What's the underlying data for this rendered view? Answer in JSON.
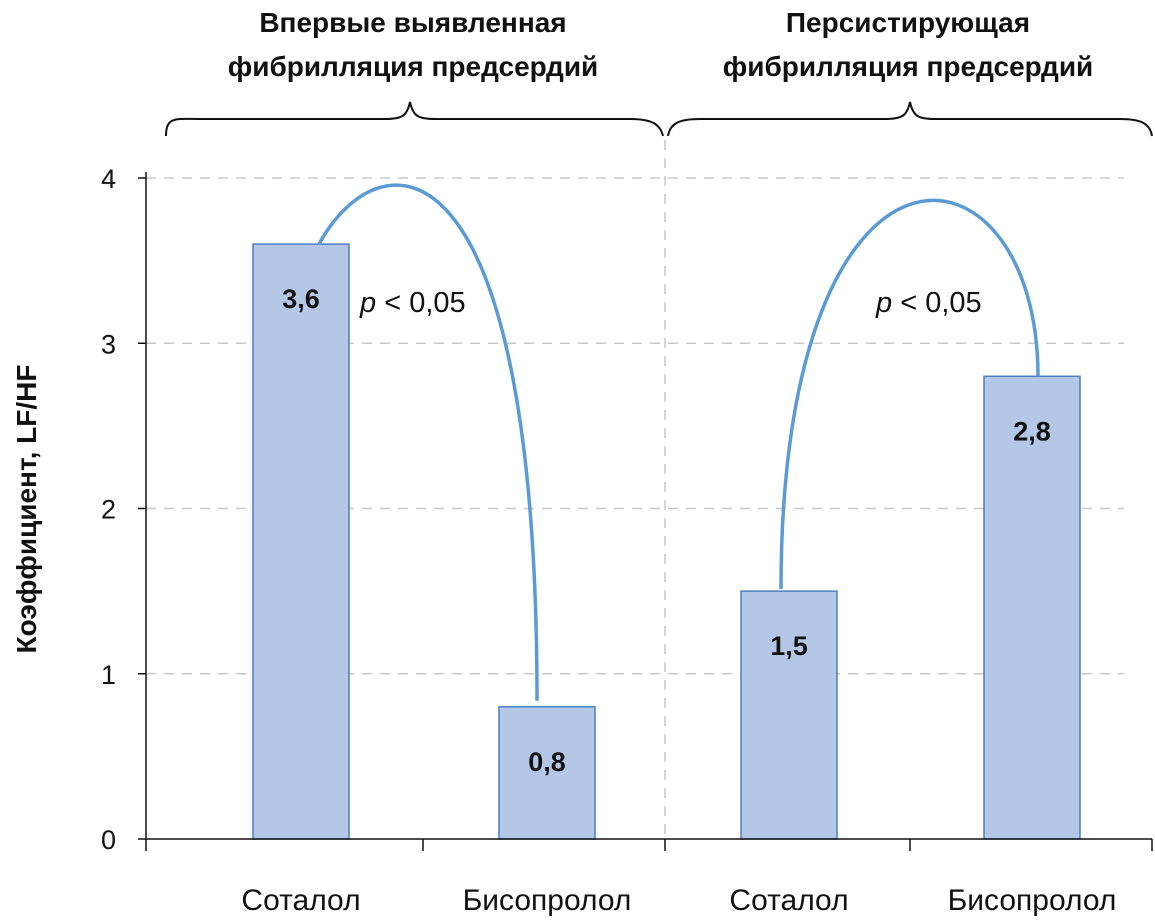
{
  "chart_data": {
    "type": "bar",
    "ylabel": "Коэффициент, LF/HF",
    "ylim": [
      0,
      4
    ],
    "yticks": [
      "0",
      "1",
      "2",
      "3",
      "4"
    ],
    "grid": true,
    "bar_color": "#b4c7e7",
    "bar_edge_color": "#4a7fc1",
    "arc_color": "#5b9bd5",
    "groups": [
      {
        "title_line1": "Впервые выявленная",
        "title_line2": "фибрилляция предсердий",
        "categories": [
          "Соталол",
          "Бисопролол"
        ],
        "values": [
          3.6,
          0.8
        ],
        "value_labels": [
          "3,6",
          "0,8"
        ],
        "annotation": {
          "p_symbol": "p",
          "p_rest": " < 0,05"
        }
      },
      {
        "title_line1": "Персистирующая",
        "title_line2": "фибрилляция предсердий",
        "categories": [
          "Соталол",
          "Бисопролол"
        ],
        "values": [
          1.5,
          2.8
        ],
        "value_labels": [
          "1,5",
          "2,8"
        ],
        "annotation": {
          "p_symbol": "p",
          "p_rest": " < 0,05"
        }
      }
    ]
  }
}
